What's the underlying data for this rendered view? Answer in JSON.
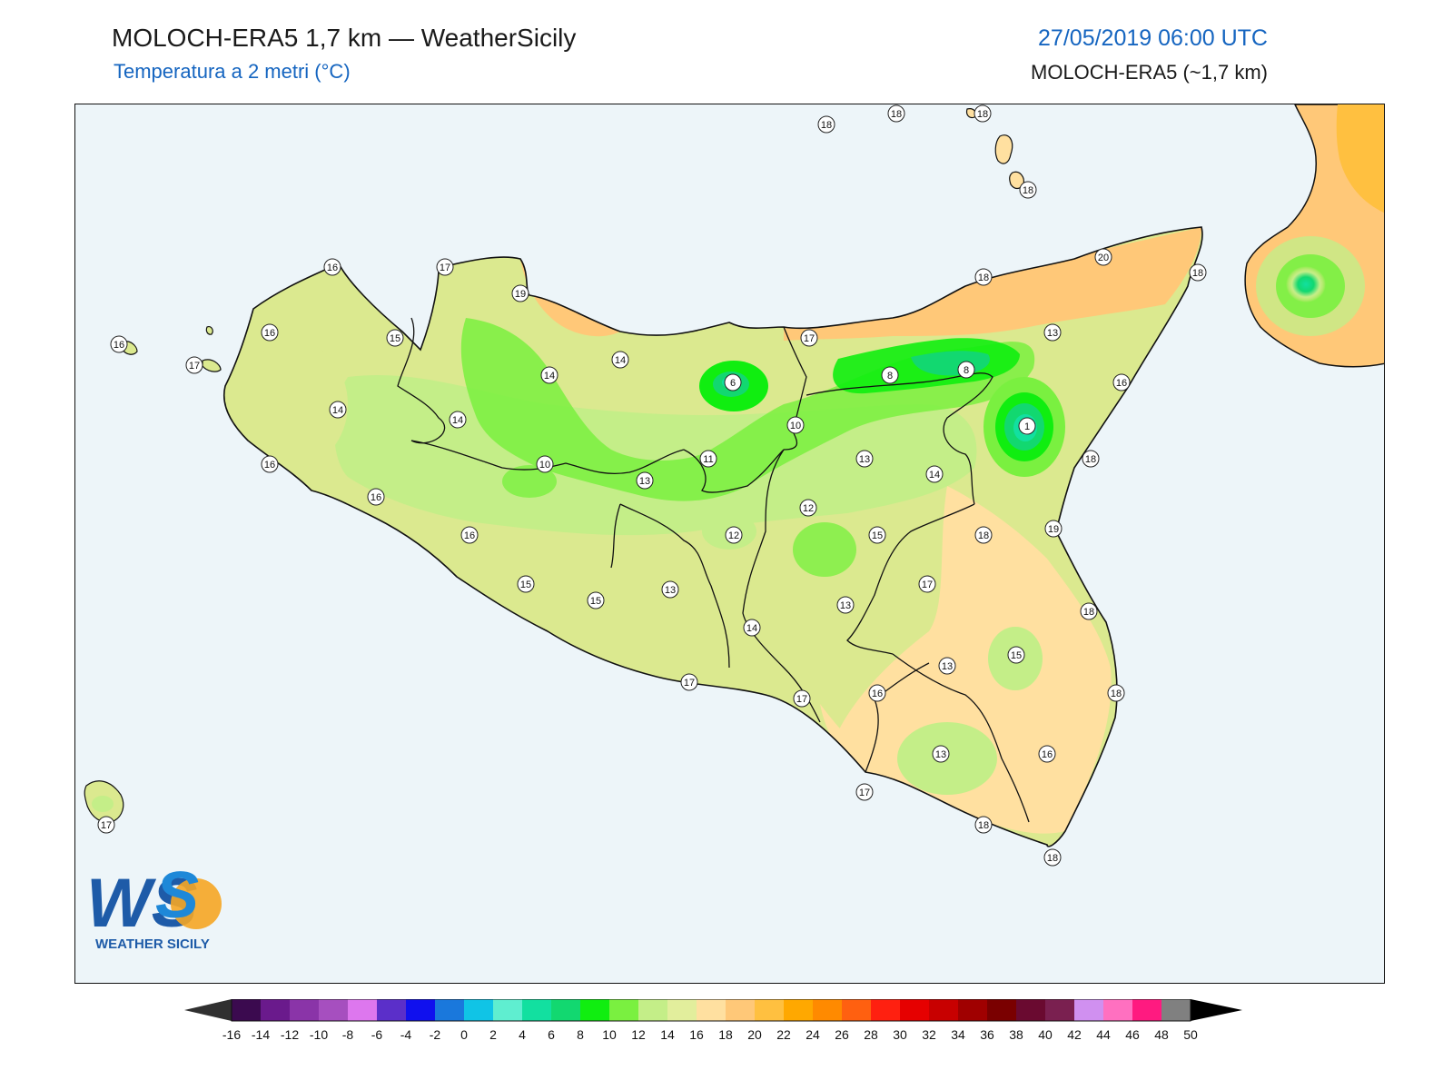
{
  "header": {
    "title": "MOLOCH-ERA5 1,7 km — WeatherSicily",
    "subtitle": "Temperatura a 2 metri (°C)",
    "datetime": "27/05/2019 06:00 UTC",
    "model": "MOLOCH-ERA5 (~1,7 km)"
  },
  "logo": {
    "letters": "WS",
    "name": "WEATHER SICILY"
  },
  "colors": {
    "sea": "#edf5f9",
    "land_base": "#dbe98f",
    "coast": "#111111"
  },
  "stations": [
    {
      "value": "18"
    },
    {
      "value": "18"
    },
    {
      "value": "18"
    },
    {
      "value": "18"
    },
    {
      "value": "16"
    },
    {
      "value": "17"
    },
    {
      "value": "19"
    },
    {
      "value": "16"
    },
    {
      "value": "15"
    },
    {
      "value": "16"
    },
    {
      "value": "17"
    },
    {
      "value": "14"
    },
    {
      "value": "14"
    },
    {
      "value": "14"
    },
    {
      "value": "6"
    },
    {
      "value": "17"
    },
    {
      "value": "8"
    },
    {
      "value": "8"
    },
    {
      "value": "20"
    },
    {
      "value": "18"
    },
    {
      "value": "18"
    },
    {
      "value": "13"
    },
    {
      "value": "16"
    },
    {
      "value": "1"
    },
    {
      "value": "14"
    },
    {
      "value": "10"
    },
    {
      "value": "10"
    },
    {
      "value": "11"
    },
    {
      "value": "13"
    },
    {
      "value": "13"
    },
    {
      "value": "14"
    },
    {
      "value": "18"
    },
    {
      "value": "16"
    },
    {
      "value": "16"
    },
    {
      "value": "12"
    },
    {
      "value": "12"
    },
    {
      "value": "15"
    },
    {
      "value": "18"
    },
    {
      "value": "19"
    },
    {
      "value": "16"
    },
    {
      "value": "15"
    },
    {
      "value": "15"
    },
    {
      "value": "13"
    },
    {
      "value": "17"
    },
    {
      "value": "13"
    },
    {
      "value": "18"
    },
    {
      "value": "14"
    },
    {
      "value": "15"
    },
    {
      "value": "13"
    },
    {
      "value": "17"
    },
    {
      "value": "17"
    },
    {
      "value": "16"
    },
    {
      "value": "18"
    },
    {
      "value": "13"
    },
    {
      "value": "16"
    },
    {
      "value": "17"
    },
    {
      "value": "18"
    },
    {
      "value": "18"
    },
    {
      "value": "17"
    }
  ],
  "colorbar": {
    "ticks": [
      "-16",
      "-14",
      "-12",
      "-10",
      "-8",
      "-6",
      "-4",
      "-2",
      "0",
      "2",
      "4",
      "6",
      "8",
      "10",
      "12",
      "14",
      "16",
      "18",
      "20",
      "22",
      "24",
      "26",
      "28",
      "30",
      "32",
      "34",
      "36",
      "38",
      "40",
      "42",
      "44",
      "46",
      "48",
      "50"
    ],
    "colors": [
      "#3b0a4f",
      "#6a1a8c",
      "#8a34a8",
      "#a64fbf",
      "#dd77ee",
      "#5b2fc9",
      "#1010ee",
      "#1a78dc",
      "#10c4e6",
      "#5feed0",
      "#12e0a0",
      "#12d870",
      "#10ee10",
      "#7af040",
      "#c4ee88",
      "#e2ee9c",
      "#ffe0a0",
      "#ffc878",
      "#ffc040",
      "#ffa800",
      "#ff8a00",
      "#ff6010",
      "#ff2010",
      "#e60000",
      "#c80000",
      "#a00000",
      "#7a0000",
      "#6a0a30",
      "#7a2050",
      "#d090f0",
      "#ff70c0",
      "#ff1a80",
      "#808080",
      "#404040"
    ]
  }
}
